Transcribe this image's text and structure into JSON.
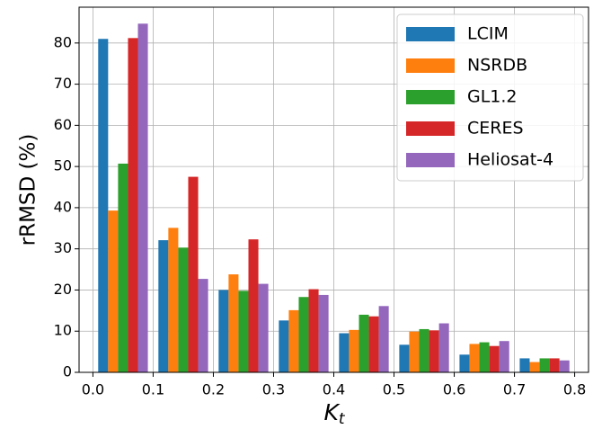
{
  "chart_data": {
    "type": "bar",
    "y_label": "rRMSD (%)",
    "x_label": {
      "base": "K",
      "subscript": "t"
    },
    "x": [
      0.05,
      0.15,
      0.25,
      0.35,
      0.45,
      0.55,
      0.65,
      0.75
    ],
    "bar_width": 0.0165,
    "series": [
      {
        "name": "LCIM",
        "color": "#1f77b4",
        "values": [
          81.0,
          32.1,
          20.0,
          12.6,
          9.5,
          6.7,
          4.3,
          3.4
        ]
      },
      {
        "name": "NSRDB",
        "color": "#ff7f0e",
        "values": [
          39.3,
          35.1,
          23.8,
          15.1,
          10.3,
          9.9,
          6.9,
          2.5
        ]
      },
      {
        "name": "GL1.2",
        "color": "#2ca02c",
        "values": [
          50.7,
          30.3,
          19.8,
          18.3,
          14.0,
          10.5,
          7.3,
          3.4
        ]
      },
      {
        "name": "CERES",
        "color": "#d62728",
        "values": [
          81.2,
          47.5,
          32.3,
          20.2,
          13.6,
          10.2,
          6.4,
          3.4
        ]
      },
      {
        "name": "Heliosat-4",
        "color": "#9467bd",
        "values": [
          84.7,
          22.7,
          21.5,
          18.8,
          16.1,
          11.9,
          7.6,
          2.9
        ]
      }
    ],
    "xlim": [
      -0.023,
      0.823
    ],
    "ylim": [
      0,
      88.7
    ],
    "xticks": [
      {
        "value": 0,
        "label": "0.0"
      },
      0.1,
      0.2,
      0.3,
      0.4,
      0.5,
      0.6,
      0.7,
      0.8
    ],
    "yticks": [
      0,
      10,
      20,
      30,
      40,
      50,
      60,
      70,
      80
    ],
    "grid": true,
    "legend": "upper right"
  }
}
